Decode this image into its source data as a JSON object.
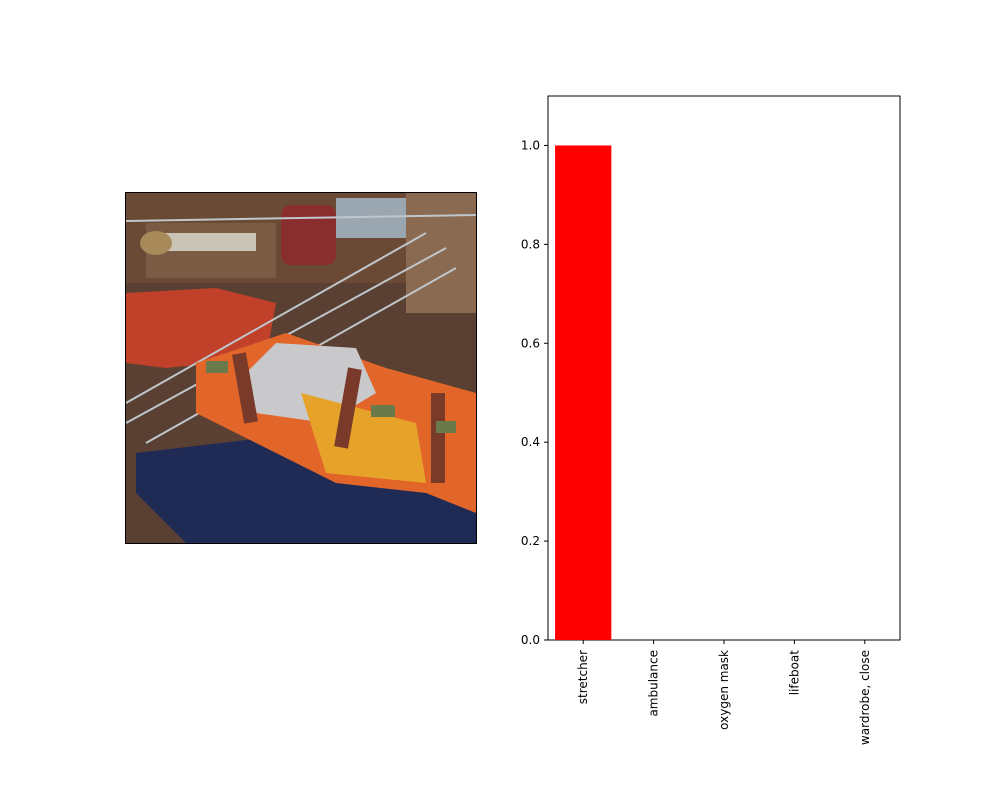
{
  "image_panel": {
    "subject": "stretcher"
  },
  "chart_data": {
    "type": "bar",
    "categories": [
      "stretcher",
      "ambulance",
      "oxygen mask",
      "lifeboat",
      "wardrobe, close"
    ],
    "values": [
      1.0,
      0.0,
      0.0,
      0.0,
      0.0
    ],
    "title": "",
    "xlabel": "",
    "ylabel": "",
    "ylim": [
      0,
      1.1
    ],
    "yticks": [
      0.0,
      0.2,
      0.4,
      0.6,
      0.8,
      1.0
    ],
    "ytick_labels": [
      "0.0",
      "0.2",
      "0.4",
      "0.6",
      "0.8",
      "1.0"
    ],
    "bar_color": "#ff0000",
    "grid": false,
    "legend": "none"
  }
}
